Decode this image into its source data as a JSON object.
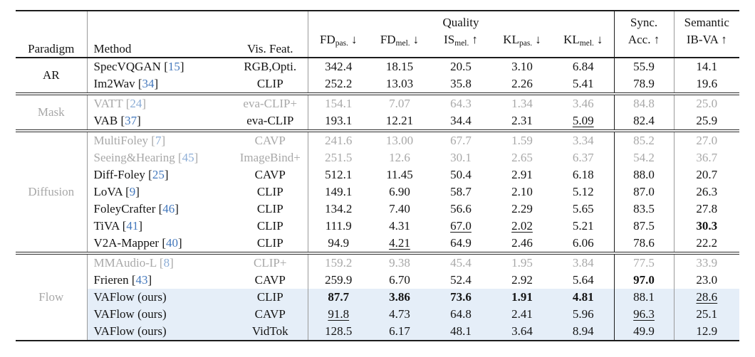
{
  "header": {
    "paradigm": "Paradigm",
    "method": "Method",
    "vis_feat": "Vis. Feat.",
    "quality_group": "Quality",
    "metrics": [
      {
        "name": "FD",
        "sub": "pas.",
        "arrow": "↓"
      },
      {
        "name": "FD",
        "sub": "mel.",
        "arrow": "↓"
      },
      {
        "name": "IS",
        "sub": "mel.",
        "arrow": "↑"
      },
      {
        "name": "KL",
        "sub": "pas.",
        "arrow": "↓"
      },
      {
        "name": "KL",
        "sub": "mel.",
        "arrow": "↓"
      }
    ],
    "sync_top": "Sync.",
    "sync_bottom": "Acc. ↑",
    "semantic_top": "Semantic",
    "semantic_bottom": "IB-VA ↑"
  },
  "colors": {
    "highlight_row": "#e5eef8",
    "deemphasized_text": "#a8a8a8",
    "citation_blue": "#4478bc"
  },
  "groups": [
    {
      "paradigm": "AR",
      "rows": [
        {
          "method": "SpecVQGAN",
          "cite": "[15]",
          "vis_feat": "RGB,Opti.",
          "values": [
            "342.4",
            "18.15",
            "20.5",
            "3.10",
            "6.84",
            "55.9",
            "14.1"
          ],
          "styles": [
            "",
            "",
            "",
            "",
            "",
            "",
            ""
          ],
          "gray": false,
          "highlight": false
        },
        {
          "method": "Im2Wav",
          "cite": "[34]",
          "vis_feat": "CLIP",
          "values": [
            "252.2",
            "13.03",
            "35.8",
            "2.26",
            "5.41",
            "78.9",
            "19.6"
          ],
          "styles": [
            "",
            "",
            "",
            "",
            "",
            "",
            ""
          ],
          "gray": false,
          "highlight": false
        }
      ]
    },
    {
      "paradigm": "Mask",
      "rows": [
        {
          "method": "VATT",
          "cite": "[24]",
          "vis_feat": "eva-CLIP+",
          "values": [
            "154.1",
            "7.07",
            "64.3",
            "1.34",
            "3.46",
            "84.8",
            "25.0"
          ],
          "styles": [
            "",
            "",
            "",
            "",
            "",
            "",
            ""
          ],
          "gray": true,
          "highlight": false
        },
        {
          "method": "VAB",
          "cite": "[37]",
          "vis_feat": "eva-CLIP",
          "values": [
            "193.1",
            "12.21",
            "34.4",
            "2.31",
            "5.09",
            "82.4",
            "25.9"
          ],
          "styles": [
            "",
            "",
            "",
            "",
            "u",
            "",
            ""
          ],
          "gray": false,
          "highlight": false
        }
      ]
    },
    {
      "paradigm": "Diffusion",
      "rows": [
        {
          "method": "MultiFoley",
          "cite": "[7]",
          "vis_feat": "CAVP",
          "values": [
            "241.6",
            "13.00",
            "67.7",
            "1.59",
            "3.34",
            "85.2",
            "27.0"
          ],
          "styles": [
            "",
            "",
            "",
            "",
            "",
            "",
            ""
          ],
          "gray": true,
          "highlight": false
        },
        {
          "method": "Seeing&Hearing",
          "cite": "[45]",
          "vis_feat": "ImageBind+",
          "values": [
            "251.5",
            "12.6",
            "30.1",
            "2.65",
            "6.37",
            "54.2",
            "36.7"
          ],
          "styles": [
            "",
            "",
            "",
            "",
            "",
            "",
            ""
          ],
          "gray": true,
          "highlight": false
        },
        {
          "method": "Diff-Foley",
          "cite": "[25]",
          "vis_feat": "CAVP",
          "values": [
            "512.1",
            "11.45",
            "50.4",
            "2.91",
            "6.18",
            "88.0",
            "20.7"
          ],
          "styles": [
            "",
            "",
            "",
            "",
            "",
            "",
            ""
          ],
          "gray": false,
          "highlight": false
        },
        {
          "method": "LoVA",
          "cite": "[9]",
          "vis_feat": "CLIP",
          "values": [
            "149.1",
            "6.90",
            "58.7",
            "2.10",
            "5.12",
            "87.0",
            "26.3"
          ],
          "styles": [
            "",
            "",
            "",
            "",
            "",
            "",
            ""
          ],
          "gray": false,
          "highlight": false
        },
        {
          "method": "FoleyCrafter",
          "cite": "[46]",
          "vis_feat": "CLIP",
          "values": [
            "134.2",
            "7.40",
            "56.6",
            "2.29",
            "5.65",
            "83.5",
            "27.8"
          ],
          "styles": [
            "",
            "",
            "",
            "",
            "",
            "",
            ""
          ],
          "gray": false,
          "highlight": false
        },
        {
          "method": "TiVA",
          "cite": "[41]",
          "vis_feat": "CLIP",
          "values": [
            "111.9",
            "4.31",
            "67.0",
            "2.02",
            "5.21",
            "87.5",
            "30.3"
          ],
          "styles": [
            "",
            "",
            "u",
            "u",
            "",
            "",
            "b"
          ],
          "gray": false,
          "highlight": false
        },
        {
          "method": "V2A-Mapper",
          "cite": "[40]",
          "vis_feat": "CLIP",
          "values": [
            "94.9",
            "4.21",
            "64.9",
            "2.46",
            "6.06",
            "78.6",
            "22.2"
          ],
          "styles": [
            "",
            "u",
            "",
            "",
            "",
            "",
            ""
          ],
          "gray": false,
          "highlight": false
        }
      ]
    },
    {
      "paradigm": "Flow",
      "rows": [
        {
          "method": "MMAudio-L",
          "cite": "[8]",
          "vis_feat": "CLIP+",
          "values": [
            "159.2",
            "9.38",
            "45.4",
            "1.95",
            "3.84",
            "77.5",
            "33.9"
          ],
          "styles": [
            "",
            "",
            "",
            "",
            "",
            "",
            ""
          ],
          "gray": true,
          "highlight": false
        },
        {
          "method": "Frieren",
          "cite": "[43]",
          "vis_feat": "CAVP",
          "values": [
            "259.9",
            "6.70",
            "52.4",
            "2.92",
            "5.64",
            "97.0",
            "23.0"
          ],
          "styles": [
            "",
            "",
            "",
            "",
            "",
            "b",
            ""
          ],
          "gray": false,
          "highlight": false
        },
        {
          "method": "VAFlow (ours)",
          "cite": "",
          "vis_feat": "CLIP",
          "values": [
            "87.7",
            "3.86",
            "73.6",
            "1.91",
            "4.81",
            "88.1",
            "28.6"
          ],
          "styles": [
            "b",
            "b",
            "b",
            "b",
            "b",
            "",
            "u"
          ],
          "gray": false,
          "highlight": true
        },
        {
          "method": "VAFlow (ours)",
          "cite": "",
          "vis_feat": "CAVP",
          "values": [
            "91.8",
            "4.73",
            "64.8",
            "2.41",
            "5.96",
            "96.3",
            "25.1"
          ],
          "styles": [
            "u",
            "",
            "",
            "",
            "",
            "u",
            ""
          ],
          "gray": false,
          "highlight": true
        },
        {
          "method": "VAFlow (ours)",
          "cite": "",
          "vis_feat": "VidTok",
          "values": [
            "128.5",
            "6.17",
            "48.1",
            "3.64",
            "8.94",
            "49.9",
            "12.9"
          ],
          "styles": [
            "",
            "",
            "",
            "",
            "",
            "",
            ""
          ],
          "gray": false,
          "highlight": true
        }
      ]
    }
  ]
}
